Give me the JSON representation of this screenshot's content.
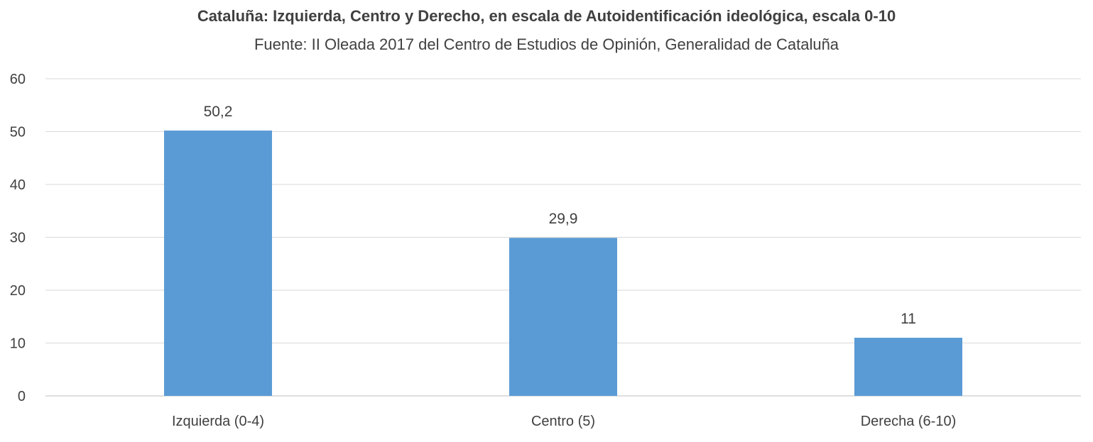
{
  "chart_data": {
    "type": "bar",
    "title": "Cataluña: Izquierda, Centro y Derecho, en escala de Autoidentificación ideológica, escala 0-10",
    "subtitle": "Fuente: II Oleada 2017 del Centro de Estudios de Opinión, Generalidad de Cataluña",
    "categories": [
      "Izquierda (0-4)",
      "Centro (5)",
      "Derecha (6-10)"
    ],
    "values": [
      50.2,
      29.9,
      11
    ],
    "data_labels": [
      "50,2",
      "29,9",
      "11"
    ],
    "ylim": [
      0,
      60
    ],
    "yticks": [
      0,
      10,
      20,
      30,
      40,
      50,
      60
    ],
    "grid": true,
    "legend": "none",
    "bar_color": "#5b9bd5"
  }
}
